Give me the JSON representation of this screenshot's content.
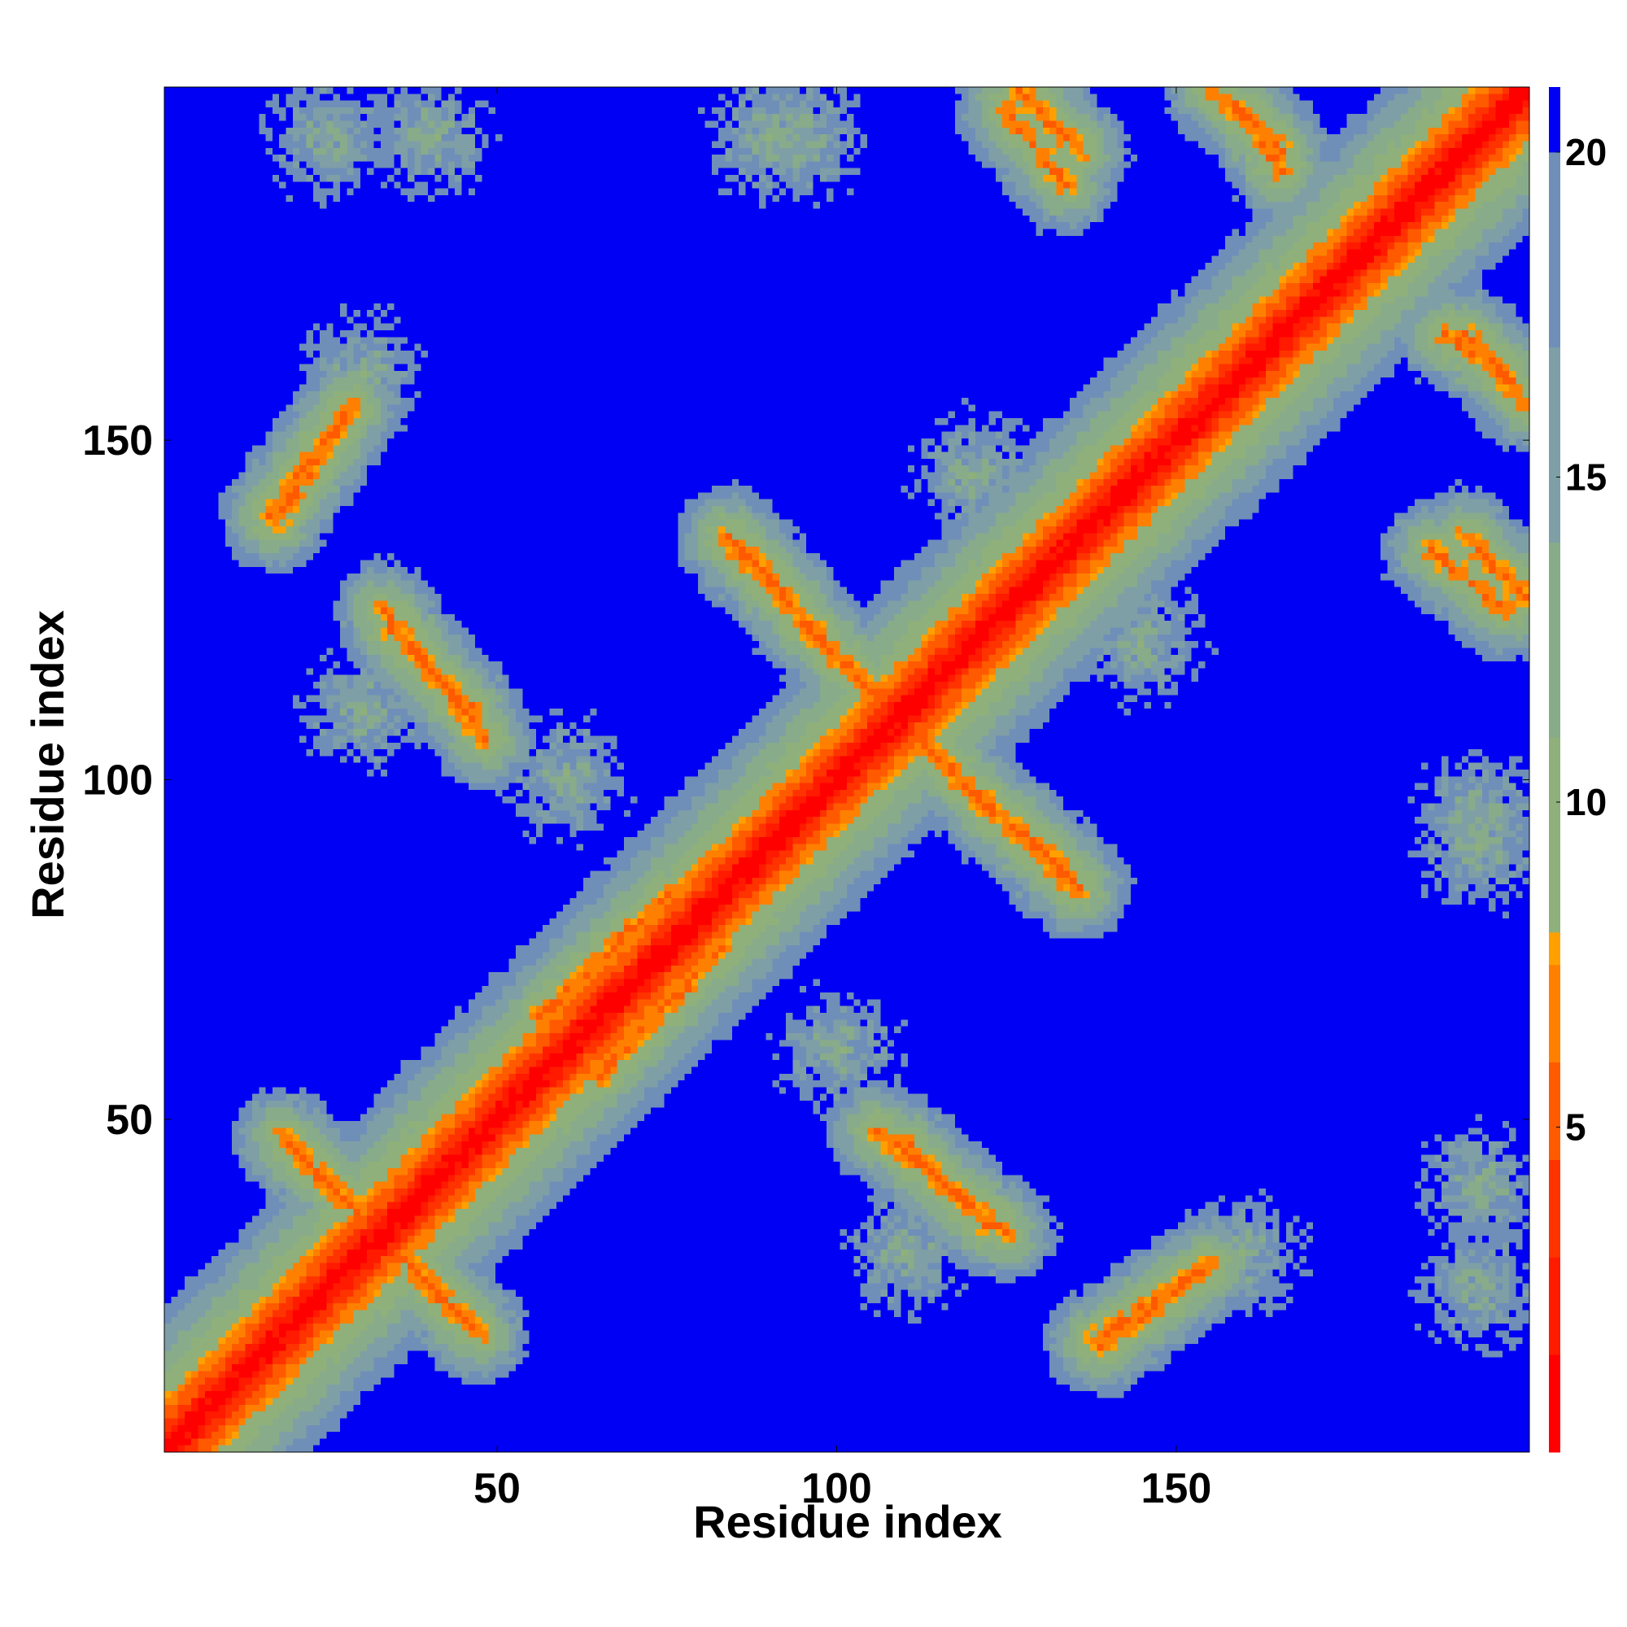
{
  "chart_data": {
    "type": "heatmap",
    "title": "",
    "xlabel": "Residue index",
    "ylabel": "Residue index",
    "xlim": [
      1,
      202
    ],
    "ylim": [
      1,
      202
    ],
    "n_residues": 202,
    "x_ticks": [
      {
        "value": 50,
        "label": "50"
      },
      {
        "value": 100,
        "label": "100"
      },
      {
        "value": 150,
        "label": "150"
      }
    ],
    "y_ticks": [
      {
        "value": 50,
        "label": "50"
      },
      {
        "value": 100,
        "label": "100"
      },
      {
        "value": 150,
        "label": "150"
      }
    ],
    "colorbar": {
      "range": [
        0,
        21
      ],
      "ticks": [
        {
          "value": 5,
          "label": "5"
        },
        {
          "value": 10,
          "label": "10"
        },
        {
          "value": 15,
          "label": "15"
        },
        {
          "value": 20,
          "label": "20"
        }
      ],
      "levels": [
        {
          "from": 0,
          "to": 1.5,
          "color": "#ff0000"
        },
        {
          "from": 1.5,
          "to": 3,
          "color": "#ff1a00"
        },
        {
          "from": 3,
          "to": 4.5,
          "color": "#ff3300"
        },
        {
          "from": 4.5,
          "to": 6,
          "color": "#ff5a00"
        },
        {
          "from": 6,
          "to": 7.5,
          "color": "#ff8000"
        },
        {
          "from": 7.5,
          "to": 8,
          "color": "#ffa000"
        },
        {
          "from": 8,
          "to": 11,
          "color": "#8fb07a"
        },
        {
          "from": 11,
          "to": 14,
          "color": "#88ab8a"
        },
        {
          "from": 14,
          "to": 17,
          "color": "#7f9fa6"
        },
        {
          "from": 17,
          "to": 20,
          "color": "#6f8fb8"
        },
        {
          "from": 20,
          "to": 21,
          "color": "#0000f5"
        }
      ],
      "background_color": "#0000f5"
    },
    "value_meaning": "inter-residue distance; diagonal ~0, far pairs saturated at 21",
    "features": [
      {
        "kind": "diagonal",
        "from": 1,
        "to": 202,
        "min_value": 0
      },
      {
        "kind": "antiparallel",
        "x1": 19,
        "y1": 46,
        "x2": 47,
        "y2": 18
      },
      {
        "kind": "antiparallel",
        "x1": 33,
        "y1": 125,
        "x2": 48,
        "y2": 106
      },
      {
        "kind": "antiparallel",
        "x1": 16,
        "y1": 139,
        "x2": 28,
        "y2": 155
      },
      {
        "kind": "antiparallel",
        "x1": 84,
        "y1": 136,
        "x2": 93,
        "y2": 127
      },
      {
        "kind": "antiparallel",
        "x1": 95,
        "y1": 123,
        "x2": 135,
        "y2": 84
      },
      {
        "kind": "antiparallel",
        "x1": 110,
        "y1": 46,
        "x2": 122,
        "y2": 34
      },
      {
        "kind": "antiparallel",
        "x1": 125,
        "y1": 199,
        "x2": 134,
        "y2": 188
      },
      {
        "kind": "antiparallel",
        "x1": 160,
        "y1": 199,
        "x2": 166,
        "y2": 190
      },
      {
        "kind": "antiparallel",
        "x1": 193,
        "y1": 166,
        "x2": 202,
        "y2": 156
      },
      {
        "kind": "antiparallel",
        "x1": 193,
        "y1": 136,
        "x2": 202,
        "y2": 127
      },
      {
        "kind": "parallel",
        "x1": 138,
        "y1": 17,
        "x2": 155,
        "y2": 28
      },
      {
        "kind": "parallel",
        "x1": 56,
        "y1": 65,
        "x2": 75,
        "y2": 83
      },
      {
        "kind": "blob",
        "x": 30,
        "y": 110
      },
      {
        "kind": "blob",
        "x": 100,
        "y": 60
      },
      {
        "kind": "blob",
        "x": 120,
        "y": 145
      },
      {
        "kind": "blob",
        "x": 160,
        "y": 30
      },
      {
        "kind": "blob",
        "x": 195,
        "y": 95
      },
      {
        "kind": "blob",
        "x": 195,
        "y": 40
      },
      {
        "kind": "blob",
        "x": 25,
        "y": 195
      },
      {
        "kind": "blob",
        "x": 90,
        "y": 195
      }
    ]
  }
}
